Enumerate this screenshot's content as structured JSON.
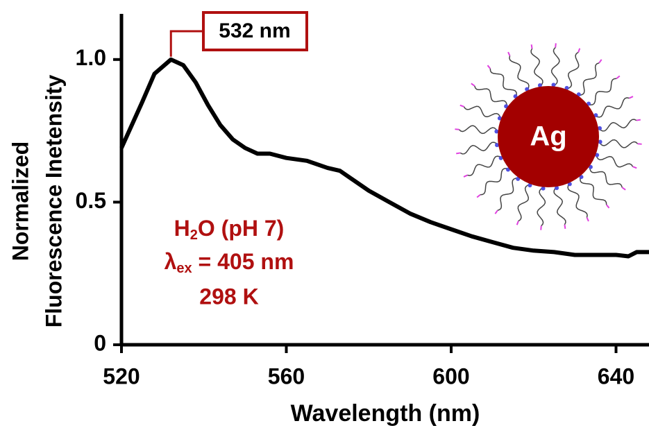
{
  "chart_data": {
    "type": "line",
    "x": [
      520,
      525,
      528,
      532,
      535,
      538,
      541,
      544,
      547,
      550,
      553,
      556,
      560,
      565,
      570,
      573,
      576,
      580,
      585,
      590,
      595,
      600,
      605,
      610,
      615,
      620,
      625,
      630,
      635,
      640,
      643,
      645,
      648
    ],
    "values": [
      0.69,
      0.85,
      0.95,
      1.0,
      0.98,
      0.92,
      0.84,
      0.77,
      0.72,
      0.69,
      0.67,
      0.67,
      0.655,
      0.645,
      0.62,
      0.61,
      0.58,
      0.54,
      0.5,
      0.46,
      0.43,
      0.405,
      0.38,
      0.36,
      0.34,
      0.33,
      0.325,
      0.315,
      0.315,
      0.315,
      0.31,
      0.325,
      0.325
    ],
    "color": "#000000",
    "xlim": [
      520,
      648
    ],
    "xticks": [
      520,
      560,
      600,
      640
    ],
    "ylim": [
      0,
      1.16
    ],
    "yticks": [
      0,
      0.5,
      {
        "value": 1,
        "label": "1.0"
      }
    ],
    "xlabel": "Wavelength (nm)",
    "ylabel": [
      "Normalized",
      "Fluorescence Inetensity"
    ],
    "peak_label": "532 nm",
    "conditions": {
      "solvent": [
        "H",
        "2",
        "O (pH 7)"
      ],
      "excitation": [
        "λ",
        "ex",
        " = 405 nm"
      ],
      "temperature": "298 K"
    },
    "annotation_color": "#b01010",
    "illustration_label": "Ag"
  }
}
